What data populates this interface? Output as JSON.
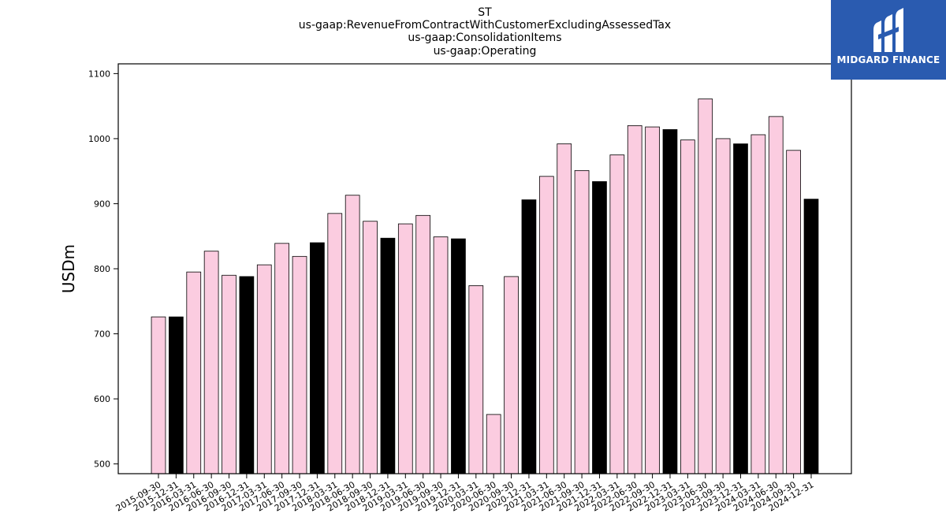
{
  "chart_data": {
    "type": "bar",
    "title_lines": [
      "ST",
      "us-gaap:RevenueFromContractWithCustomerExcludingAssessedTax",
      "us-gaap:ConsolidationItems",
      "us-gaap:Operating"
    ],
    "ylabel": "USDm",
    "xlabel": "",
    "ylim": [
      485,
      1115
    ],
    "yticks": [
      500,
      600,
      700,
      800,
      900,
      1000,
      1100
    ],
    "categories": [
      "2015-09-30",
      "2015-12-31",
      "2016-03-31",
      "2016-06-30",
      "2016-09-30",
      "2016-12-31",
      "2017-03-31",
      "2017-06-30",
      "2017-09-30",
      "2017-12-31",
      "2018-03-31",
      "2018-06-30",
      "2018-09-30",
      "2018-12-31",
      "2019-03-31",
      "2019-06-30",
      "2019-09-30",
      "2019-12-31",
      "2020-03-31",
      "2020-06-30",
      "2020-09-30",
      "2020-12-31",
      "2021-03-31",
      "2021-06-30",
      "2021-09-30",
      "2021-12-31",
      "2022-03-31",
      "2022-06-30",
      "2022-09-30",
      "2022-12-31",
      "2023-03-31",
      "2023-06-30",
      "2023-09-30",
      "2023-12-31",
      "2024-03-31",
      "2024-06-30",
      "2024-09-30",
      "2024-12-31"
    ],
    "values": [
      726,
      726,
      795,
      827,
      790,
      788,
      806,
      839,
      819,
      840,
      885,
      913,
      873,
      847,
      869,
      882,
      849,
      846,
      774,
      576,
      788,
      906,
      942,
      992,
      951,
      934,
      975,
      1020,
      1018,
      1014,
      998,
      1061,
      1000,
      992,
      1006,
      1034,
      982,
      907
    ],
    "highlight_categories": [
      "2015-12-31",
      "2016-12-31",
      "2017-12-31",
      "2018-12-31",
      "2019-12-31",
      "2020-12-31",
      "2021-12-31",
      "2022-12-31",
      "2023-12-31",
      "2024-12-31"
    ],
    "colors": {
      "bar": "#fbcce0",
      "highlight": "#000000",
      "edge": "#000000"
    },
    "grid": false,
    "legend": "none"
  },
  "logo": {
    "text": "MIDGARD FINANCE",
    "background": "#2a5bb0"
  }
}
